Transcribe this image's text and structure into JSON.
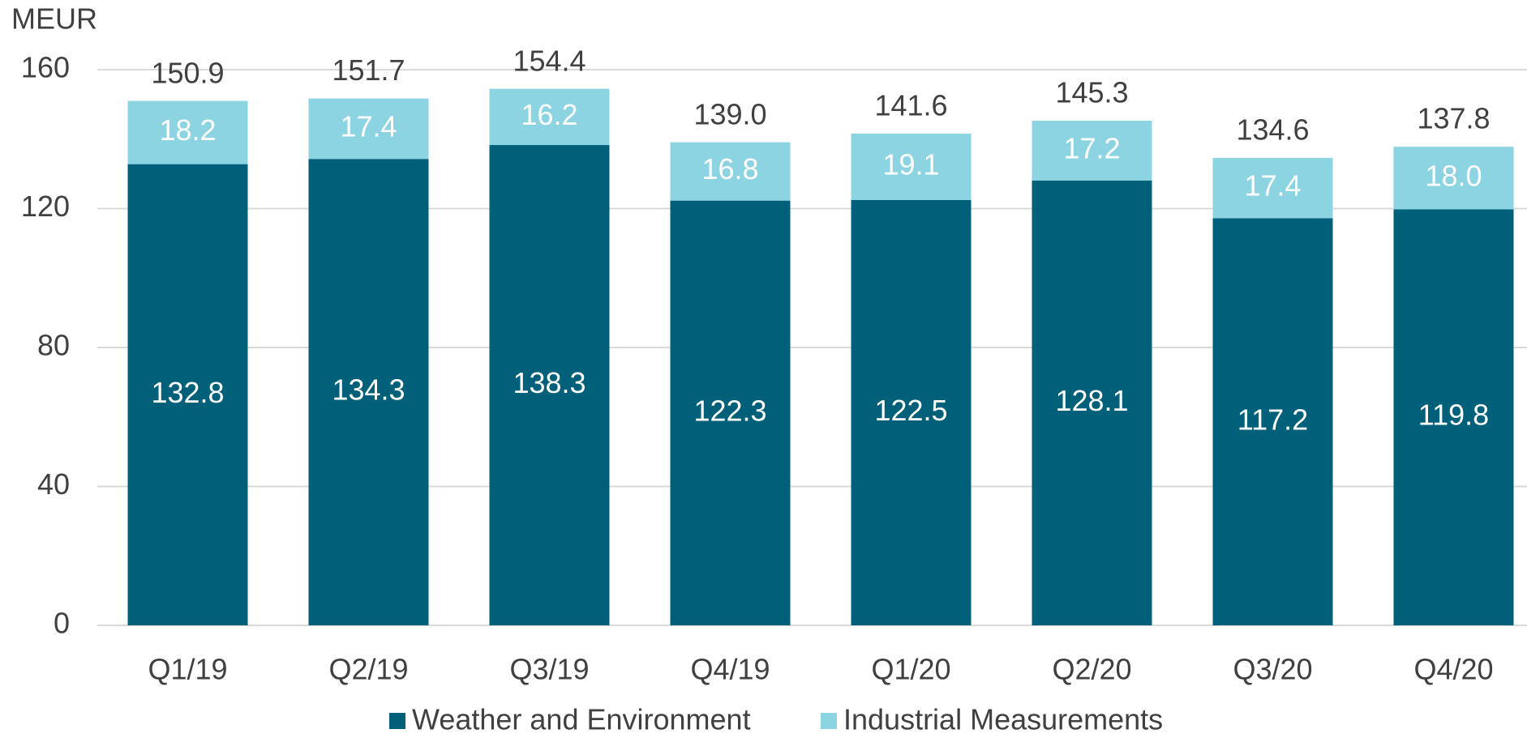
{
  "chart_data": {
    "type": "stacked_bar",
    "y_axis_label": "MEUR",
    "categories": [
      "Q1/19",
      "Q2/19",
      "Q3/19",
      "Q4/19",
      "Q1/20",
      "Q2/20",
      "Q3/20",
      "Q4/20"
    ],
    "series": [
      {
        "name": "Weather and Environment",
        "color": "#00607a",
        "values": [
          132.8,
          134.3,
          138.3,
          122.3,
          122.5,
          128.1,
          117.2,
          119.8
        ],
        "value_labels": [
          "132.8",
          "134.3",
          "138.3",
          "122.3",
          "122.5",
          "128.1",
          "117.2",
          "119.8"
        ]
      },
      {
        "name": "Industrial Measurements",
        "color": "#8dd4e3",
        "values": [
          18.2,
          17.4,
          16.2,
          16.8,
          19.1,
          17.2,
          17.4,
          18.0
        ],
        "value_labels": [
          "18.2",
          "17.4",
          "16.2",
          "16.8",
          "19.1",
          "17.2",
          "17.4",
          "18.0"
        ]
      }
    ],
    "totals": {
      "values": [
        150.9,
        151.7,
        154.4,
        139.0,
        141.6,
        145.3,
        134.6,
        137.8
      ],
      "value_labels": [
        "150.9",
        "151.7",
        "154.4",
        "139.0",
        "141.6",
        "145.3",
        "134.6",
        "137.8"
      ]
    },
    "ylim": [
      0,
      160
    ],
    "yticks": [
      0,
      40,
      80,
      120,
      160
    ],
    "grid": true,
    "legend": "bottom"
  }
}
